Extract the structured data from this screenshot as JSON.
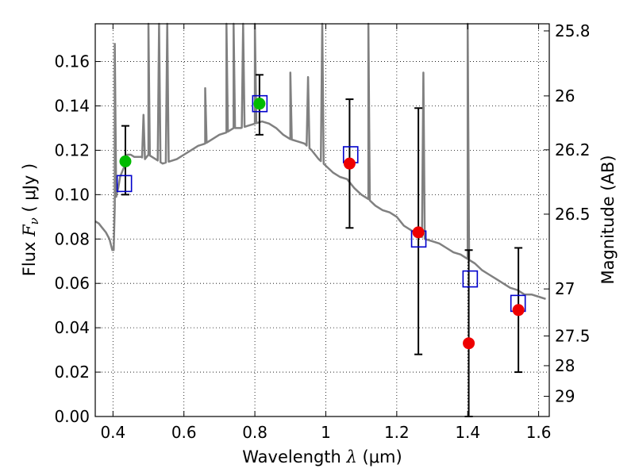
{
  "chart_data": {
    "type": "scatter",
    "title": "",
    "xlabel": {
      "prefix": "Wavelength  ",
      "symbol": "λ",
      "units": " (μm)"
    },
    "ylabel": {
      "prefix": "Flux  ",
      "symbol": "F",
      "subscript": "ν",
      "units": "  ( μJy )"
    },
    "ylabel_right": "Magnitude (AB)",
    "xlim": [
      0.35,
      1.63
    ],
    "ylim": [
      0.0,
      0.177
    ],
    "grid": true,
    "x_ticks": [
      0.4,
      0.6,
      0.8,
      1.0,
      1.2,
      1.4,
      1.6
    ],
    "x_tick_labels": [
      "0.4",
      "0.6",
      "0.8",
      "1",
      "1.2",
      "1.4",
      "1.6"
    ],
    "y_ticks": [
      0.0,
      0.02,
      0.04,
      0.06,
      0.08,
      0.1,
      0.12,
      0.14,
      0.16
    ],
    "y_tick_labels": [
      "0.00",
      "0.02",
      "0.04",
      "0.06",
      "0.08",
      "0.10",
      "0.12",
      "0.14",
      "0.16"
    ],
    "mag_ticks": [
      {
        "label": "25.8",
        "flux": 0.1738
      },
      {
        "label": "26",
        "flux": 0.1445
      },
      {
        "label": "26.2",
        "flux": 0.1202
      },
      {
        "label": "26.5",
        "flux": 0.0912
      },
      {
        "label": "27",
        "flux": 0.0575
      },
      {
        "label": "27.5",
        "flux": 0.0363
      },
      {
        "label": "28",
        "flux": 0.0229
      },
      {
        "label": "29",
        "flux": 0.0091
      }
    ],
    "series": [
      {
        "kind": "model_spectrum",
        "color": "#808080",
        "points": [
          [
            0.35,
            0.088
          ],
          [
            0.36,
            0.087
          ],
          [
            0.37,
            0.085
          ],
          [
            0.38,
            0.083
          ],
          [
            0.39,
            0.08
          ],
          [
            0.398,
            0.075
          ],
          [
            0.402,
            0.075
          ],
          [
            0.405,
            0.095
          ],
          [
            0.41,
            0.1
          ],
          [
            0.415,
            0.103
          ],
          [
            0.42,
            0.108
          ],
          [
            0.425,
            0.11
          ],
          [
            0.43,
            0.112
          ],
          [
            0.435,
            0.115
          ],
          [
            0.44,
            0.118
          ],
          [
            0.45,
            0.118
          ],
          [
            0.46,
            0.117
          ],
          [
            0.47,
            0.117
          ],
          [
            0.48,
            0.117
          ],
          [
            0.49,
            0.116
          ],
          [
            0.5,
            0.118
          ],
          [
            0.52,
            0.116
          ],
          [
            0.54,
            0.114
          ],
          [
            0.56,
            0.115
          ],
          [
            0.58,
            0.116
          ],
          [
            0.6,
            0.118
          ],
          [
            0.62,
            0.12
          ],
          [
            0.64,
            0.122
          ],
          [
            0.66,
            0.123
          ],
          [
            0.68,
            0.125
          ],
          [
            0.7,
            0.127
          ],
          [
            0.72,
            0.128
          ],
          [
            0.74,
            0.13
          ],
          [
            0.76,
            0.13
          ],
          [
            0.78,
            0.131
          ],
          [
            0.8,
            0.132
          ],
          [
            0.82,
            0.133
          ],
          [
            0.84,
            0.132
          ],
          [
            0.86,
            0.13
          ],
          [
            0.88,
            0.127
          ],
          [
            0.9,
            0.125
          ],
          [
            0.92,
            0.124
          ],
          [
            0.94,
            0.123
          ],
          [
            0.96,
            0.12
          ],
          [
            0.98,
            0.116
          ],
          [
            1.0,
            0.113
          ],
          [
            1.02,
            0.11
          ],
          [
            1.04,
            0.108
          ],
          [
            1.06,
            0.107
          ],
          [
            1.08,
            0.103
          ],
          [
            1.1,
            0.1
          ],
          [
            1.12,
            0.098
          ],
          [
            1.14,
            0.095
          ],
          [
            1.16,
            0.093
          ],
          [
            1.18,
            0.092
          ],
          [
            1.2,
            0.09
          ],
          [
            1.22,
            0.086
          ],
          [
            1.24,
            0.084
          ],
          [
            1.26,
            0.082
          ],
          [
            1.28,
            0.08
          ],
          [
            1.3,
            0.079
          ],
          [
            1.32,
            0.078
          ],
          [
            1.34,
            0.076
          ],
          [
            1.36,
            0.074
          ],
          [
            1.38,
            0.073
          ],
          [
            1.4,
            0.071
          ],
          [
            1.42,
            0.069
          ],
          [
            1.44,
            0.066
          ],
          [
            1.46,
            0.064
          ],
          [
            1.48,
            0.062
          ],
          [
            1.5,
            0.06
          ],
          [
            1.52,
            0.058
          ],
          [
            1.54,
            0.057
          ],
          [
            1.56,
            0.055
          ],
          [
            1.58,
            0.055
          ],
          [
            1.6,
            0.054
          ],
          [
            1.62,
            0.053
          ]
        ],
        "emission_lines": [
          {
            "x": 0.405,
            "peak": 0.168
          },
          {
            "x": 0.486,
            "peak": 0.136
          },
          {
            "x": 0.5,
            "peak": 0.177
          },
          {
            "x": 0.53,
            "peak": 0.177
          },
          {
            "x": 0.553,
            "peak": 0.177
          },
          {
            "x": 0.66,
            "peak": 0.148
          },
          {
            "x": 0.72,
            "peak": 0.177
          },
          {
            "x": 0.74,
            "peak": 0.177
          },
          {
            "x": 0.767,
            "peak": 0.177
          },
          {
            "x": 0.8,
            "peak": 0.177
          },
          {
            "x": 0.9,
            "peak": 0.155
          },
          {
            "x": 0.95,
            "peak": 0.153
          },
          {
            "x": 0.99,
            "peak": 0.177
          },
          {
            "x": 1.12,
            "peak": 0.177
          },
          {
            "x": 1.275,
            "peak": 0.155
          },
          {
            "x": 1.4,
            "peak": 0.177
          }
        ]
      },
      {
        "kind": "model_fluxes",
        "marker": "open_square",
        "color": "#0000cc",
        "points": [
          {
            "x": 0.432,
            "y": 0.105
          },
          {
            "x": 0.814,
            "y": 0.141
          },
          {
            "x": 1.07,
            "y": 0.118
          },
          {
            "x": 1.262,
            "y": 0.08
          },
          {
            "x": 1.407,
            "y": 0.062
          },
          {
            "x": 1.542,
            "y": 0.051
          }
        ]
      },
      {
        "kind": "observed_fluxes",
        "marker": "filled_circle",
        "points": [
          {
            "x": 0.435,
            "y": 0.115,
            "yerr_low": 0.1,
            "yerr_high": 0.131,
            "color": "#00bb00"
          },
          {
            "x": 0.813,
            "y": 0.141,
            "yerr_low": 0.127,
            "yerr_high": 0.154,
            "color": "#00bb00"
          },
          {
            "x": 1.067,
            "y": 0.114,
            "yerr_low": 0.085,
            "yerr_high": 0.143,
            "color": "#ee0000"
          },
          {
            "x": 1.261,
            "y": 0.083,
            "yerr_low": 0.028,
            "yerr_high": 0.139,
            "color": "#ee0000"
          },
          {
            "x": 1.403,
            "y": 0.033,
            "yerr_low": 0.0,
            "yerr_high": 0.075,
            "color": "#ee0000"
          },
          {
            "x": 1.543,
            "y": 0.048,
            "yerr_low": 0.02,
            "yerr_high": 0.076,
            "color": "#ee0000"
          }
        ]
      }
    ]
  }
}
